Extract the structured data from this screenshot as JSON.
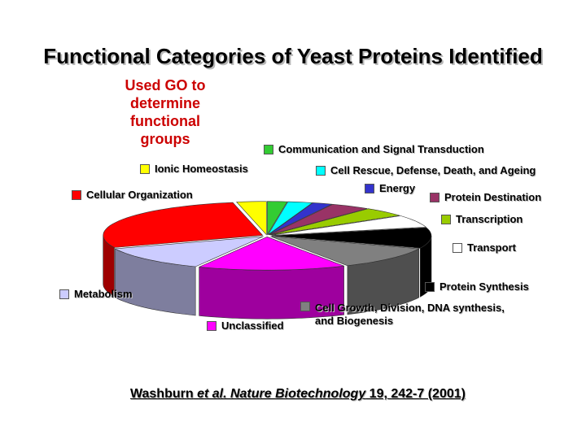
{
  "title": "Functional Categories of Yeast Proteins Identified",
  "note_lines": [
    "Used GO to",
    "determine",
    "functional",
    "groups"
  ],
  "citation": {
    "authors": "Washburn",
    "etal": " et al. Nature Biotechnology",
    "rest": " 19, 242-7 (2001)"
  },
  "chart_data": {
    "type": "pie",
    "style": "3d-exploded",
    "start_angle_deg": 90,
    "direction": "clockwise",
    "slices": [
      {
        "label": "Communication and Signal Transduction",
        "value": 2.0,
        "color": "#33cc33"
      },
      {
        "label": "Cell Rescue, Defense, Death, and Ageing",
        "value": 2.5,
        "color": "#00ffff"
      },
      {
        "label": "Energy",
        "value": 2.0,
        "color": "#3333cc"
      },
      {
        "label": "Protein Destination",
        "value": 4.0,
        "color": "#993366"
      },
      {
        "label": "Transcription",
        "value": 4.5,
        "color": "#99cc00"
      },
      {
        "label": "Transport",
        "value": 6.0,
        "color": "#ffffff"
      },
      {
        "label": "Protein Synthesis",
        "value": 10.0,
        "color": "#000000"
      },
      {
        "label": "Cell Growth, Division, DNA synthesis, and Biogenesis",
        "value": 11.0,
        "color": "#808080"
      },
      {
        "label": "Unclassified",
        "value": 15.0,
        "color": "#ff00ff"
      },
      {
        "label": "Metabolism",
        "value": 12.0,
        "color": "#ccccff"
      },
      {
        "label": "Cellular Organization",
        "value": 28.0,
        "color": "#ff0000"
      },
      {
        "label": "Ionic Homeostasis",
        "value": 3.0,
        "color": "#ffff00"
      }
    ]
  },
  "legend": {
    "communication": {
      "text": "Communication and Signal Transduction",
      "color": "#33cc33"
    },
    "ionic": {
      "text": "Ionic Homeostasis",
      "color": "#ffff00"
    },
    "rescue": {
      "text": "Cell Rescue, Defense, Death, and Ageing",
      "color": "#00ffff"
    },
    "energy": {
      "text": "Energy",
      "color": "#3333cc"
    },
    "cellular": {
      "text": "Cellular Organization",
      "color": "#ff0000"
    },
    "destination": {
      "text": "Protein Destination",
      "color": "#993366"
    },
    "transcription": {
      "text": "Transcription",
      "color": "#99cc00"
    },
    "transport": {
      "text": "Transport",
      "color": "#ffffff"
    },
    "synthesis": {
      "text": "Protein Synthesis",
      "color": "#000000"
    },
    "metabolism": {
      "text": "Metabolism",
      "color": "#ccccff"
    },
    "growth_line1": "Cell Growth, Division, DNA synthesis,",
    "growth_line2": "and Biogenesis",
    "growth_color": "#808080",
    "unclassified": {
      "text": "Unclassified",
      "color": "#ff00ff"
    }
  }
}
